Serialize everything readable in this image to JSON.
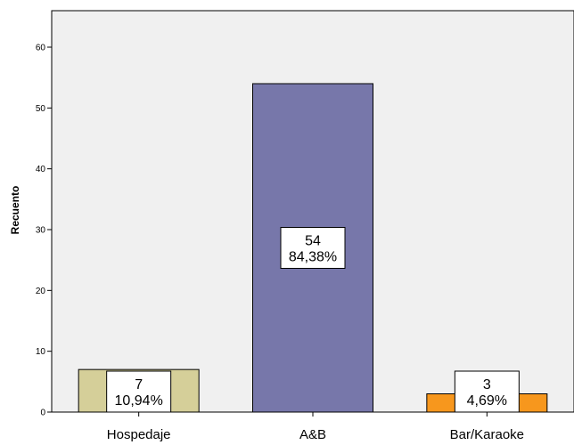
{
  "chart_data": {
    "type": "bar",
    "categories": [
      "Hospedaje",
      "A&B",
      "Bar/Karaoke"
    ],
    "values": [
      7,
      54,
      3
    ],
    "percent_labels": [
      "10,94%",
      "84,38%",
      "4,69%"
    ],
    "count_labels": [
      "7",
      "54",
      "3"
    ],
    "colors": [
      "#d5cf99",
      "#7777aa",
      "#f7971d"
    ],
    "ylabel": "Recuento",
    "ylim": [
      0,
      66
    ],
    "yticks": [
      "0",
      "10",
      "20",
      "30",
      "40",
      "50",
      "60"
    ],
    "plot_background": "#f0f0f0",
    "grid": false,
    "legend": false
  }
}
